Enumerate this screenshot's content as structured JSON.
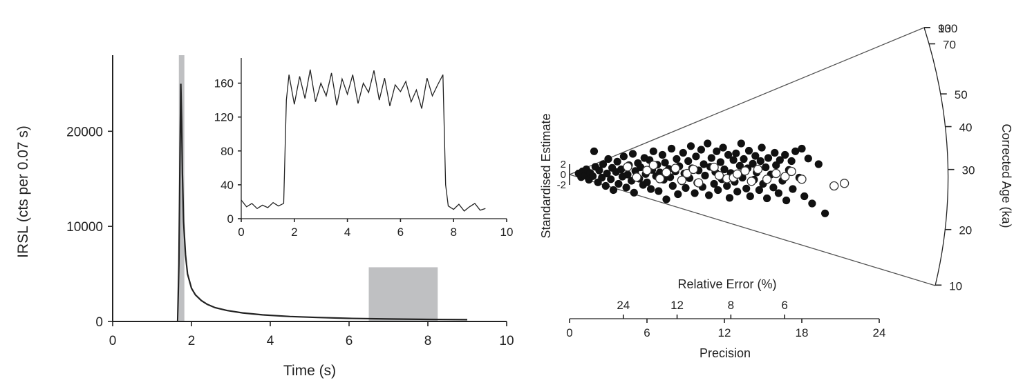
{
  "chart_data": [
    {
      "id": "main",
      "type": "line",
      "xlabel": "Time (s)",
      "ylabel": "IRSL (cts per 0.07 s)",
      "xlim": [
        0,
        10
      ],
      "ylim": [
        0,
        28000
      ],
      "xticks": [
        0,
        2,
        4,
        6,
        8,
        10
      ],
      "yticks": [
        0,
        10000,
        20000
      ],
      "series": [
        {
          "x": [
            1.65,
            1.68,
            1.71,
            1.73,
            1.75,
            1.77,
            1.8,
            1.85,
            1.9,
            2.0,
            2.1,
            2.25,
            2.4,
            2.6,
            2.9,
            3.3,
            3.8,
            4.5,
            5.2,
            6.0,
            7.0,
            8.0,
            9.0
          ],
          "y": [
            0,
            6000,
            18000,
            25000,
            21000,
            15500,
            10500,
            7000,
            5000,
            3500,
            2800,
            2200,
            1800,
            1450,
            1150,
            900,
            700,
            520,
            420,
            330,
            260,
            220,
            190
          ]
        }
      ],
      "shaded_regions": [
        {
          "x": [
            1.68,
            1.82
          ],
          "y": [
            0,
            28000
          ]
        },
        {
          "x": [
            6.5,
            8.25
          ],
          "y": [
            0,
            5700
          ]
        }
      ]
    },
    {
      "id": "inset",
      "type": "line",
      "xlim": [
        0,
        10
      ],
      "ylim": [
        0,
        180
      ],
      "xticks": [
        0,
        2,
        4,
        6,
        8,
        10
      ],
      "yticks": [
        0,
        40,
        80,
        120,
        160
      ],
      "series": [
        {
          "x": [
            0.0,
            0.2,
            0.4,
            0.6,
            0.8,
            1.0,
            1.2,
            1.4,
            1.6,
            1.7,
            1.8,
            2.0,
            2.2,
            2.4,
            2.6,
            2.8,
            3.0,
            3.2,
            3.4,
            3.6,
            3.8,
            4.0,
            4.2,
            4.4,
            4.6,
            4.8,
            5.0,
            5.2,
            5.4,
            5.6,
            5.8,
            6.0,
            6.2,
            6.4,
            6.6,
            6.8,
            7.0,
            7.2,
            7.4,
            7.6,
            7.7,
            7.8,
            8.0,
            8.2,
            8.4,
            8.6,
            8.8,
            9.0,
            9.2
          ],
          "y": [
            22,
            14,
            18,
            12,
            16,
            13,
            19,
            15,
            18,
            140,
            170,
            135,
            168,
            142,
            176,
            138,
            160,
            145,
            172,
            134,
            165,
            147,
            170,
            136,
            160,
            149,
            175,
            140,
            166,
            133,
            158,
            150,
            162,
            138,
            152,
            130,
            166,
            145,
            158,
            170,
            40,
            15,
            11,
            17,
            9,
            14,
            18,
            10,
            12
          ]
        }
      ]
    },
    {
      "id": "radial",
      "type": "scatter",
      "xlabel": "Precision",
      "x2label": "Relative Error (%)",
      "ylabel": "Standardised Estimate",
      "zlabel": "Corrected Age (ka)",
      "xlim": [
        0,
        24
      ],
      "xticks": [
        0,
        6,
        12,
        18,
        24
      ],
      "x2ticks": [
        24,
        12,
        8,
        6
      ],
      "yticks": [
        2,
        0,
        -2
      ],
      "zticks": [
        10,
        20,
        30,
        40,
        50,
        70,
        90,
        130
      ],
      "central_value": 29,
      "series": [
        {
          "marker": "filled",
          "points": [
            [
              0.7,
              0.2
            ],
            [
              0.9,
              -0.5
            ],
            [
              1.0,
              0.6
            ],
            [
              1.2,
              -0.2
            ],
            [
              1.3,
              1.0
            ],
            [
              1.5,
              -1.0
            ],
            [
              1.6,
              0.3
            ],
            [
              1.8,
              -0.3
            ],
            [
              1.9,
              4.5
            ],
            [
              2.0,
              1.5
            ],
            [
              2.2,
              -1.5
            ],
            [
              2.3,
              0.8
            ],
            [
              2.5,
              -0.6
            ],
            [
              2.6,
              2.0
            ],
            [
              2.8,
              -2.2
            ],
            [
              2.9,
              0.2
            ],
            [
              3.0,
              3.0
            ],
            [
              3.2,
              -0.9
            ],
            [
              3.3,
              1.3
            ],
            [
              3.4,
              -3.0
            ],
            [
              3.6,
              0.5
            ],
            [
              3.7,
              2.5
            ],
            [
              3.8,
              -1.8
            ],
            [
              4.0,
              1.0
            ],
            [
              4.1,
              -0.4
            ],
            [
              4.2,
              3.5
            ],
            [
              4.4,
              -2.5
            ],
            [
              4.5,
              0.0
            ],
            [
              4.6,
              1.8
            ],
            [
              4.8,
              -1.2
            ],
            [
              4.9,
              4.0
            ],
            [
              5.0,
              -3.5
            ],
            [
              5.1,
              0.7
            ],
            [
              5.3,
              2.2
            ],
            [
              5.4,
              -0.8
            ],
            [
              5.5,
              1.4
            ],
            [
              5.7,
              -2.0
            ],
            [
              5.8,
              3.2
            ],
            [
              5.9,
              0.1
            ],
            [
              6.0,
              -1.5
            ],
            [
              6.2,
              2.8
            ],
            [
              6.3,
              -2.8
            ],
            [
              6.4,
              0.9
            ],
            [
              6.5,
              4.5
            ],
            [
              6.7,
              -0.3
            ],
            [
              6.8,
              1.9
            ],
            [
              6.9,
              -3.2
            ],
            [
              7.0,
              0.4
            ],
            [
              7.2,
              3.8
            ],
            [
              7.3,
              -1.0
            ],
            [
              7.4,
              2.3
            ],
            [
              7.5,
              -4.8
            ],
            [
              7.7,
              1.1
            ],
            [
              7.8,
              -0.5
            ],
            [
              7.9,
              5.0
            ],
            [
              8.0,
              -2.2
            ],
            [
              8.2,
              0.6
            ],
            [
              8.3,
              3.0
            ],
            [
              8.4,
              -3.8
            ],
            [
              8.5,
              1.6
            ],
            [
              8.7,
              -1.3
            ],
            [
              8.8,
              4.2
            ],
            [
              8.9,
              0.2
            ],
            [
              9.0,
              -2.6
            ],
            [
              9.2,
              2.6
            ],
            [
              9.3,
              -0.7
            ],
            [
              9.4,
              5.5
            ],
            [
              9.5,
              1.2
            ],
            [
              9.7,
              -3.6
            ],
            [
              9.8,
              3.5
            ],
            [
              9.9,
              -1.6
            ],
            [
              10.0,
              0.8
            ],
            [
              10.2,
              4.8
            ],
            [
              10.3,
              -2.4
            ],
            [
              10.4,
              2.0
            ],
            [
              10.5,
              -0.2
            ],
            [
              10.7,
              6.0
            ],
            [
              10.8,
              -4.0
            ],
            [
              10.9,
              1.5
            ],
            [
              11.0,
              3.2
            ],
            [
              11.2,
              -1.8
            ],
            [
              11.3,
              0.5
            ],
            [
              11.4,
              4.5
            ],
            [
              11.5,
              -3.0
            ],
            [
              11.7,
              2.4
            ],
            [
              11.8,
              -0.9
            ],
            [
              11.9,
              5.2
            ],
            [
              12.0,
              1.0
            ],
            [
              12.2,
              -2.2
            ],
            [
              12.3,
              3.8
            ],
            [
              12.4,
              -4.5
            ],
            [
              12.5,
              0.3
            ],
            [
              12.7,
              2.8
            ],
            [
              12.8,
              -1.4
            ],
            [
              12.9,
              4.1
            ],
            [
              13.0,
              -3.3
            ],
            [
              13.2,
              1.7
            ],
            [
              13.3,
              6.0
            ],
            [
              13.4,
              -0.6
            ],
            [
              13.5,
              3.0
            ],
            [
              13.7,
              -2.7
            ],
            [
              13.8,
              1.2
            ],
            [
              13.9,
              4.6
            ],
            [
              14.0,
              -4.2
            ],
            [
              14.2,
              2.1
            ],
            [
              14.3,
              -1.0
            ],
            [
              14.4,
              3.6
            ],
            [
              14.5,
              0.4
            ],
            [
              14.7,
              -3.0
            ],
            [
              14.8,
              2.6
            ],
            [
              14.9,
              5.2
            ],
            [
              15.0,
              -1.8
            ],
            [
              15.2,
              1.4
            ],
            [
              15.3,
              -4.6
            ],
            [
              15.4,
              3.2
            ],
            [
              15.6,
              0.0
            ],
            [
              15.8,
              -2.5
            ],
            [
              15.9,
              4.2
            ],
            [
              16.0,
              1.8
            ],
            [
              16.2,
              -3.6
            ],
            [
              16.3,
              2.8
            ],
            [
              16.5,
              -1.2
            ],
            [
              16.7,
              3.8
            ],
            [
              16.8,
              -5.0
            ],
            [
              17.0,
              0.9
            ],
            [
              17.2,
              2.6
            ],
            [
              17.3,
              -2.8
            ],
            [
              17.5,
              4.5
            ],
            [
              17.8,
              -0.6
            ],
            [
              18.0,
              5.0
            ],
            [
              18.2,
              -4.2
            ],
            [
              18.5,
              3.1
            ],
            [
              18.8,
              -5.6
            ],
            [
              19.3,
              2.0
            ],
            [
              19.8,
              -7.5
            ]
          ]
        },
        {
          "marker": "open",
          "points": [
            [
              4.5,
              1.5
            ],
            [
              5.2,
              -0.5
            ],
            [
              6.0,
              0.8
            ],
            [
              6.5,
              1.8
            ],
            [
              7.0,
              -0.8
            ],
            [
              7.5,
              0.4
            ],
            [
              8.2,
              1.2
            ],
            [
              8.7,
              -1.1
            ],
            [
              9.1,
              0.2
            ],
            [
              9.6,
              1.0
            ],
            [
              10.0,
              -1.6
            ],
            [
              11.2,
              1.4
            ],
            [
              11.6,
              -0.2
            ],
            [
              12.2,
              -0.8
            ],
            [
              12.7,
              -0.6
            ],
            [
              13.0,
              0.1
            ],
            [
              13.6,
              0.7
            ],
            [
              14.1,
              -1.3
            ],
            [
              14.6,
              1.0
            ],
            [
              15.3,
              -0.9
            ],
            [
              16.0,
              0.2
            ],
            [
              16.7,
              -0.4
            ],
            [
              17.2,
              0.6
            ],
            [
              18.0,
              -0.9
            ],
            [
              20.5,
              -2.2
            ],
            [
              21.3,
              -1.7
            ]
          ]
        }
      ]
    }
  ]
}
